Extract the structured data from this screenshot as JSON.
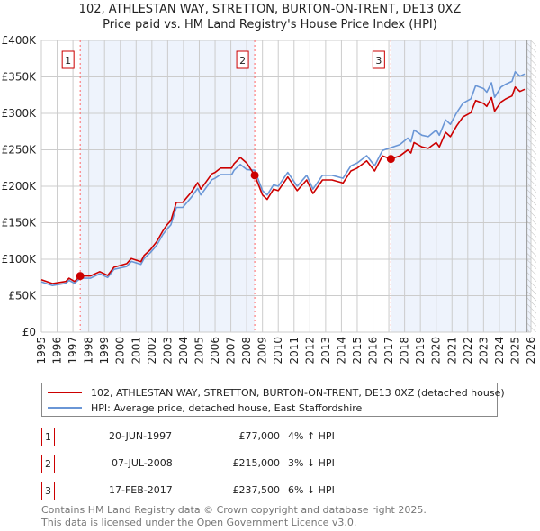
{
  "title": "102, ATHLESTAN WAY, STRETTON, BURTON-ON-TRENT, DE13 0XZ",
  "subtitle": "Price paid vs. HM Land Registry's House Price Index (HPI)",
  "colors": {
    "property": "#cc0000",
    "hpi": "#6a96d6",
    "band": "#eef3fc",
    "grid": "#cccccc",
    "marker": "#cc0000"
  },
  "chart_data": {
    "type": "line",
    "title": "Price paid vs. HM Land Registry's House Price Index (HPI)",
    "xlabel": "",
    "ylabel": "",
    "xlim": [
      1995,
      2026
    ],
    "ylim": [
      0,
      400000
    ],
    "grid": true,
    "x_ticks": [
      "1995",
      "1996",
      "1997",
      "1998",
      "1999",
      "2000",
      "2001",
      "2002",
      "2003",
      "2004",
      "2005",
      "2006",
      "2007",
      "2008",
      "2009",
      "2010",
      "2011",
      "2012",
      "2013",
      "2014",
      "2015",
      "2016",
      "2017",
      "2018",
      "2019",
      "2020",
      "2021",
      "2022",
      "2023",
      "2024",
      "2025",
      "2026"
    ],
    "y_ticks": [
      {
        "value": 0,
        "label": "£0"
      },
      {
        "value": 50000,
        "label": "£50K"
      },
      {
        "value": 100000,
        "label": "£100K"
      },
      {
        "value": 150000,
        "label": "£150K"
      },
      {
        "value": 200000,
        "label": "£200K"
      },
      {
        "value": 250000,
        "label": "£250K"
      },
      {
        "value": 300000,
        "label": "£300K"
      },
      {
        "value": 350000,
        "label": "£350K"
      },
      {
        "value": 400000,
        "label": "£400K"
      }
    ],
    "shaded_ranges": [
      [
        1997.46,
        2008.51
      ],
      [
        2017.13,
        2026
      ]
    ],
    "projection_from": 2025.75,
    "x": [
      1995.0,
      1995.7,
      1996.55,
      1996.75,
      1997.1,
      1997.46,
      1998.1,
      1998.7,
      1999.2,
      1999.6,
      2000.4,
      2000.7,
      2001.3,
      2001.5,
      2001.9,
      2002.3,
      2002.7,
      2002.95,
      2003.2,
      2003.55,
      2003.95,
      2004.5,
      2004.9,
      2005.1,
      2005.8,
      2006.0,
      2006.35,
      2007.05,
      2007.2,
      2007.6,
      2008.0,
      2008.51,
      2009.0,
      2009.3,
      2009.7,
      2010.0,
      2010.6,
      2011.2,
      2011.8,
      2012.2,
      2012.8,
      2013.4,
      2014.1,
      2014.6,
      2015.0,
      2015.6,
      2016.1,
      2016.6,
      2017.13,
      2017.7,
      2018.2,
      2018.4,
      2018.6,
      2019.1,
      2019.5,
      2020.0,
      2020.2,
      2020.6,
      2020.9,
      2021.3,
      2021.7,
      2022.2,
      2022.5,
      2023.0,
      2023.2,
      2023.5,
      2023.7,
      2024.1,
      2024.4,
      2024.8,
      2025.0,
      2025.3,
      2025.6
    ],
    "series": [
      {
        "name": "102, ATHLESTAN WAY, STRETTON, BURTON-ON-TRENT, DE13 0XZ (detached house)",
        "values": [
          72000,
          66700,
          69500,
          74000,
          69500,
          77000,
          77000,
          83000,
          77800,
          89000,
          94000,
          101000,
          96700,
          105000,
          113000,
          124000,
          139000,
          147000,
          153000,
          178000,
          178000,
          192000,
          205000,
          196000,
          217000,
          219000,
          225000,
          225000,
          231000,
          239500,
          232000,
          215000,
          188000,
          182000,
          196000,
          194000,
          212700,
          194000,
          208600,
          190000,
          208600,
          208600,
          204500,
          221000,
          225000,
          235000,
          221000,
          241600,
          237500,
          241600,
          249700,
          245700,
          260000,
          254000,
          252000,
          260000,
          254000,
          274000,
          268000,
          283000,
          295000,
          301000,
          317600,
          313600,
          309500,
          321700,
          303000,
          315600,
          319800,
          323800,
          336000,
          330000,
          333000
        ]
      },
      {
        "name": "HPI: Average price, detached house, East Staffordshire",
        "values": [
          69000,
          64000,
          67000,
          71000,
          67000,
          74000,
          74000,
          80000,
          75000,
          86000,
          90000,
          97000,
          93000,
          101000,
          109000,
          119000,
          134000,
          141000,
          147000,
          171000,
          171000,
          185000,
          197000,
          188000,
          209000,
          211000,
          216000,
          216000,
          222000,
          230000,
          223000,
          222000,
          194000,
          188000,
          202000,
          200000,
          219000,
          200000,
          215000,
          196000,
          215000,
          215000,
          211000,
          228000,
          232000,
          242000,
          228000,
          249000,
          253000,
          257000,
          266000,
          261000,
          277000,
          270000,
          268000,
          277000,
          270000,
          291000,
          285000,
          301000,
          314000,
          320000,
          338000,
          334000,
          329000,
          342000,
          322000,
          336000,
          340000,
          344000,
          357000,
          351000,
          354000
        ]
      }
    ],
    "sales": [
      {
        "label": "1",
        "x": 1997.46,
        "value": 77000
      },
      {
        "label": "2",
        "x": 2008.51,
        "value": 215000
      },
      {
        "label": "3",
        "x": 2017.13,
        "value": 237500
      }
    ]
  },
  "legend": {
    "property": "102, ATHLESTAN WAY, STRETTON, BURTON-ON-TRENT, DE13 0XZ (detached house)",
    "hpi": "HPI: Average price, detached house, East Staffordshire"
  },
  "transactions": [
    {
      "num": "1",
      "date": "20-JUN-1997",
      "price": "£77,000",
      "hpi": "4% ↑ HPI"
    },
    {
      "num": "2",
      "date": "07-JUL-2008",
      "price": "£215,000",
      "hpi": "3% ↓ HPI"
    },
    {
      "num": "3",
      "date": "17-FEB-2017",
      "price": "£237,500",
      "hpi": "6% ↓ HPI"
    }
  ],
  "footer": {
    "line1": "Contains HM Land Registry data © Crown copyright and database right 2025.",
    "line2": "This data is licensed under the Open Government Licence v3.0."
  }
}
